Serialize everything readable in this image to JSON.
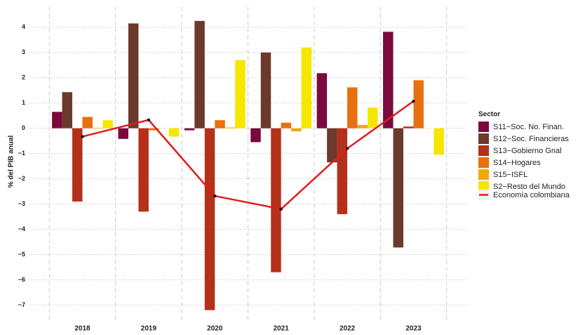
{
  "chart_data": {
    "type": "bar",
    "y_label": "% del PIB anual",
    "categories": [
      "2018",
      "2019",
      "2020",
      "2021",
      "2022",
      "2023"
    ],
    "series": [
      {
        "name": "S11−Soc. No. Finan.",
        "color": "#7a0a3e",
        "values": [
          0.65,
          -0.42,
          -0.08,
          -0.55,
          2.18,
          3.82
        ]
      },
      {
        "name": "S12−Soc. Financieras",
        "color": "#6b3a2a",
        "values": [
          1.43,
          4.15,
          4.25,
          3.0,
          -1.35,
          -4.72
        ]
      },
      {
        "name": "S13−Gobierno Gnal",
        "color": "#b5301a",
        "values": [
          -2.9,
          -3.3,
          -7.2,
          -5.7,
          -3.4,
          0.07
        ]
      },
      {
        "name": "S14−Hogares",
        "color": "#e8700f",
        "values": [
          0.45,
          -0.08,
          0.32,
          0.22,
          1.62,
          1.9
        ]
      },
      {
        "name": "S15−ISFL",
        "color": "#f5a800",
        "values": [
          0.02,
          0.0,
          0.03,
          -0.12,
          0.13,
          0.0
        ]
      },
      {
        "name": "S2−Resto del Mundo",
        "color": "#f7e600",
        "values": [
          0.32,
          -0.33,
          2.7,
          3.2,
          0.82,
          -1.05
        ]
      }
    ],
    "line": {
      "name": "Economía colombiana",
      "color": "#e31a1c",
      "values": [
        -0.33,
        0.33,
        -2.68,
        -3.2,
        -0.8,
        1.07
      ]
    },
    "legend_title": "Sector",
    "legend": "right",
    "ylim": [
      -7.6,
      4.8
    ],
    "yticks": [
      {
        "value": -7,
        "label": "−7"
      },
      {
        "value": -6,
        "label": "−6"
      },
      {
        "value": -5,
        "label": "−5"
      },
      {
        "value": -4,
        "label": "−4"
      },
      {
        "value": -3,
        "label": "−3"
      },
      {
        "value": -2,
        "label": "−2"
      },
      {
        "value": -1,
        "label": "−1"
      },
      0,
      1,
      2,
      3,
      4
    ],
    "grid": true
  }
}
